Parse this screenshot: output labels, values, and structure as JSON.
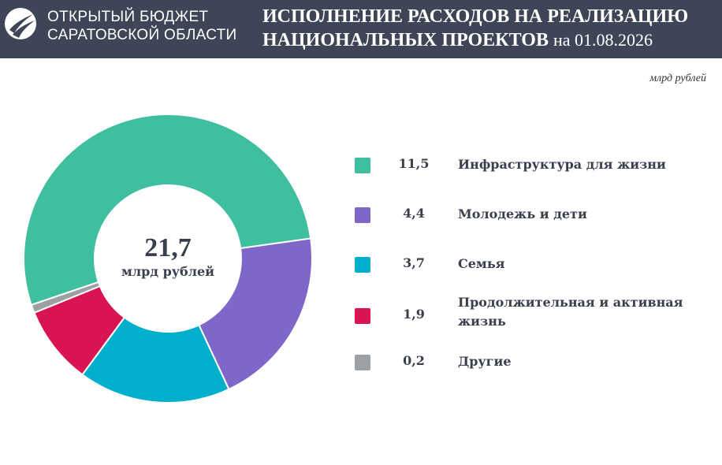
{
  "header": {
    "logo_line1": "ОТКРЫТЫЙ БЮДЖЕТ",
    "logo_line2": "САРАТОВСКОЙ ОБЛАСТИ",
    "title_line1": "ИСПОЛНЕНИЕ РАСХОДОВ НА РЕАЛИЗАЦИЮ",
    "title_line2": "НАЦИОНАЛЬНЫХ ПРОЕКТОВ",
    "title_date": "на 01.08.2026",
    "background_color": "#3d4557"
  },
  "units": "млрд рублей",
  "center": {
    "total": "21,7",
    "unit": "млрд рублей"
  },
  "chart_data": {
    "type": "pie",
    "categories": [
      "Инфраструктура для жизни",
      "Молодежь и дети",
      "Семья",
      "Продолжительная и активная жизнь",
      "Другие"
    ],
    "values": [
      11.5,
      4.4,
      3.7,
      1.9,
      0.2
    ],
    "value_labels": [
      "11,5",
      "4,4",
      "3,7",
      "1,9",
      "0,2"
    ],
    "colors": [
      "#3fbf9f",
      "#7f66c9",
      "#00afcc",
      "#d91452",
      "#9c9fa3"
    ],
    "total": 21.7,
    "legend_position": "right",
    "donut": true
  }
}
